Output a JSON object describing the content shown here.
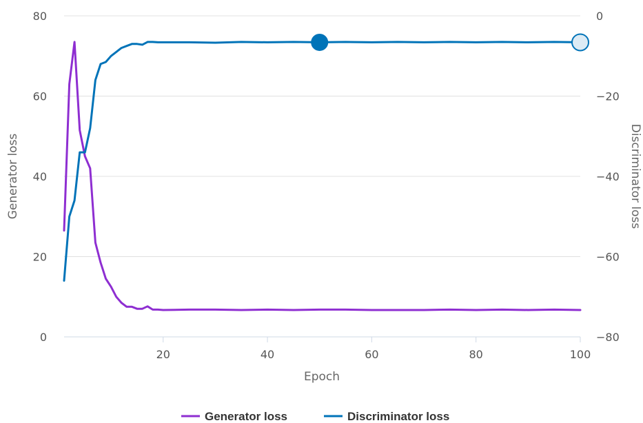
{
  "chart_data": {
    "type": "line",
    "xlabel": "Epoch",
    "ylabel_left": "Generator loss",
    "ylabel_right": "Discriminator loss",
    "xlim": [
      1,
      100
    ],
    "ylim_left": [
      0,
      80
    ],
    "ylim_right": [
      -80,
      0
    ],
    "xticks": [
      20,
      40,
      60,
      80,
      100
    ],
    "yticks_left": [
      0,
      20,
      40,
      60,
      80
    ],
    "yticks_right": [
      -80,
      -60,
      -40,
      -20,
      0
    ],
    "grid": true,
    "legend_position": "bottom-center",
    "series": [
      {
        "name": "Generator loss",
        "axis": "left",
        "color": "#8e2ed1",
        "x": [
          1,
          2,
          3,
          4,
          5,
          6,
          7,
          8,
          9,
          10,
          11,
          12,
          13,
          14,
          15,
          16,
          17,
          18,
          19,
          20,
          25,
          30,
          35,
          40,
          45,
          50,
          55,
          60,
          65,
          70,
          75,
          80,
          85,
          90,
          95,
          100
        ],
        "y": [
          26.5,
          63,
          73.5,
          51.5,
          45,
          42,
          23.5,
          18.5,
          14.5,
          12.5,
          10,
          8.5,
          7.5,
          7.5,
          7,
          7,
          7.6,
          6.8,
          6.8,
          6.7,
          6.8,
          6.8,
          6.7,
          6.8,
          6.7,
          6.8,
          6.8,
          6.7,
          6.7,
          6.7,
          6.8,
          6.7,
          6.8,
          6.7,
          6.8,
          6.7
        ]
      },
      {
        "name": "Discriminator loss",
        "axis": "right",
        "color": "#0073b8",
        "x": [
          1,
          2,
          3,
          4,
          5,
          6,
          7,
          8,
          9,
          10,
          11,
          12,
          13,
          14,
          15,
          16,
          17,
          18,
          19,
          20,
          25,
          30,
          35,
          40,
          45,
          50,
          55,
          60,
          65,
          70,
          75,
          80,
          85,
          90,
          95,
          100
        ],
        "y": [
          -66,
          -50,
          -46,
          -34,
          -34,
          -28,
          -16,
          -12,
          -11.5,
          -10,
          -9,
          -8,
          -7.5,
          -7,
          -7,
          -7.2,
          -6.5,
          -6.5,
          -6.6,
          -6.6,
          -6.6,
          -6.7,
          -6.5,
          -6.6,
          -6.5,
          -6.6,
          -6.5,
          -6.6,
          -6.5,
          -6.6,
          -6.5,
          -6.6,
          -6.5,
          -6.6,
          -6.5,
          -6.6
        ]
      }
    ],
    "highlighted_points": [
      {
        "series": "Discriminator loss",
        "x": 50,
        "y": -6.6,
        "style": "filled"
      },
      {
        "series": "Discriminator loss",
        "x": 100,
        "y": -6.6,
        "style": "hollow"
      }
    ]
  }
}
